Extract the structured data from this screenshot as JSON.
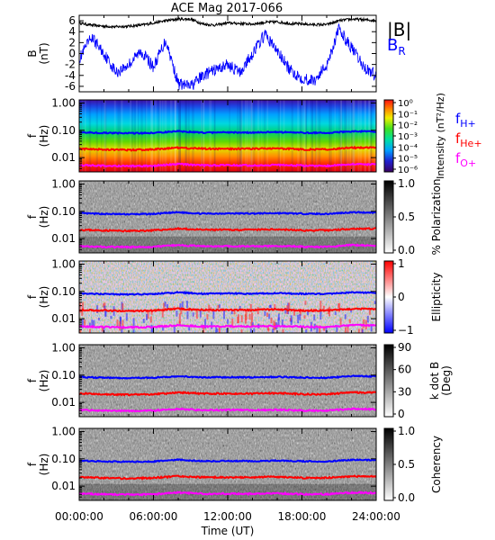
{
  "title": "ACE Mag 2017-066",
  "colors": {
    "B_total": "#000000",
    "B_R": "#0000ff",
    "f_H": "#0000ff",
    "f_He": "#ff0000",
    "f_O": "#ff00ff",
    "frame": "#000000",
    "background": "#ffffff"
  },
  "xaxis": {
    "label": "Time (UT)",
    "ticks": [
      "00:00:00",
      "06:00:00",
      "12:00:00",
      "18:00:00",
      "24:00:00"
    ],
    "range_hours": [
      0,
      24
    ]
  },
  "chart_data": [
    {
      "type": "line",
      "panel": "field",
      "ylabel_top": "B",
      "ylabel_bottom": "(nT)",
      "yticks": [
        "6",
        "4",
        "2",
        "0",
        "-2",
        "-4",
        "-6"
      ],
      "ylim": [
        -7,
        7
      ],
      "legend": [
        "|B|",
        "BR"
      ],
      "series": [
        {
          "name": "|B|",
          "x": [
            0,
            1,
            2,
            3,
            4,
            5,
            6,
            7,
            8,
            9,
            10,
            11,
            12,
            13,
            14,
            15,
            16,
            17,
            18,
            19,
            20,
            21,
            22,
            23,
            24
          ],
          "values": [
            5.6,
            5.2,
            5.0,
            4.9,
            5.0,
            5.2,
            5.6,
            6.0,
            6.3,
            6.3,
            5.4,
            5.2,
            5.6,
            5.5,
            5.4,
            5.7,
            5.8,
            5.5,
            5.4,
            5.3,
            5.3,
            6.0,
            6.3,
            6.2,
            6.0
          ]
        },
        {
          "name": "BR",
          "x": [
            0,
            1,
            2,
            3,
            4,
            5,
            6,
            7,
            8,
            9,
            10,
            11,
            12,
            13,
            14,
            15,
            16,
            17,
            18,
            19,
            20,
            21,
            22,
            23,
            24
          ],
          "values": [
            -1.0,
            3.0,
            0.0,
            -3.5,
            -2.0,
            0.5,
            -2.5,
            2.5,
            -5.5,
            -6.0,
            -4.0,
            -3.0,
            -2.0,
            -3.5,
            0.0,
            3.5,
            0.5,
            -3.0,
            -4.5,
            -5.0,
            -2.0,
            4.5,
            1.0,
            -2.5,
            -4.0
          ]
        }
      ]
    },
    {
      "type": "heatmap",
      "panel": "intensity",
      "ylabel_top": "f",
      "ylabel_bottom": "(Hz)",
      "yticks": [
        "1.00",
        "0.10",
        "0.01"
      ],
      "ylim_hz": [
        0.003,
        1.3
      ],
      "colorbar": {
        "label": "Intensity (nT²/Hz)",
        "ticks": [
          "10⁰",
          "10⁻¹",
          "10⁻²",
          "10⁻³",
          "10⁻⁴",
          "10⁻⁵",
          "10⁻⁶"
        ],
        "scale": "rainbow"
      },
      "legend": [
        {
          "base": "f",
          "sub": "H+",
          "color": "#0000ff"
        },
        {
          "base": "f",
          "sub": "He+",
          "color": "#ff0000"
        },
        {
          "base": "f",
          "sub": "O+",
          "color": "#ff00ff"
        }
      ]
    },
    {
      "type": "heatmap",
      "panel": "polarization",
      "ylabel_top": "f",
      "ylabel_bottom": "(Hz)",
      "yticks": [
        "1.00",
        "0.10",
        "0.01"
      ],
      "ylim_hz": [
        0.003,
        1.3
      ],
      "colorbar": {
        "label": "% Polarization",
        "ticks": [
          "1.0",
          "0.5",
          "0.0"
        ],
        "scale": "gray"
      }
    },
    {
      "type": "heatmap",
      "panel": "ellipticity",
      "ylabel_top": "f",
      "ylabel_bottom": "(Hz)",
      "yticks": [
        "1.00",
        "0.10",
        "0.01"
      ],
      "ylim_hz": [
        0.003,
        1.3
      ],
      "colorbar": {
        "label": "Ellipticity",
        "ticks": [
          "1",
          "0",
          "−1"
        ],
        "scale": "bwr"
      }
    },
    {
      "type": "heatmap",
      "panel": "kdotb",
      "ylabel_top": "f",
      "ylabel_bottom": "(Hz)",
      "yticks": [
        "1.00",
        "0.10",
        "0.01"
      ],
      "ylim_hz": [
        0.003,
        1.3
      ],
      "colorbar": {
        "label": "k dot B (Deg)",
        "label_line1": "k dot B",
        "label_line2": "(Deg)",
        "ticks": [
          "90",
          "60",
          "30",
          "0"
        ],
        "scale": "gray"
      }
    },
    {
      "type": "heatmap",
      "panel": "coherency",
      "ylabel_top": "f",
      "ylabel_bottom": "(Hz)",
      "yticks": [
        "1.00",
        "0.10",
        "0.01"
      ],
      "ylim_hz": [
        0.003,
        1.3
      ],
      "colorbar": {
        "label": "Coherency",
        "ticks": [
          "1.0",
          "0.5",
          "0.0"
        ],
        "scale": "gray"
      }
    }
  ],
  "gyro_lines_hz": {
    "x": [
      0,
      2,
      4,
      6,
      8,
      10,
      12,
      14,
      16,
      18,
      20,
      22,
      24
    ],
    "f_H": [
      0.085,
      0.08,
      0.078,
      0.08,
      0.092,
      0.082,
      0.084,
      0.083,
      0.086,
      0.082,
      0.08,
      0.092,
      0.09
    ],
    "f_He": [
      0.021,
      0.02,
      0.019,
      0.02,
      0.023,
      0.021,
      0.021,
      0.021,
      0.022,
      0.02,
      0.02,
      0.023,
      0.023
    ],
    "f_O": [
      0.0053,
      0.005,
      0.0049,
      0.005,
      0.0058,
      0.0052,
      0.0053,
      0.0052,
      0.0054,
      0.0051,
      0.005,
      0.0058,
      0.0056
    ]
  }
}
